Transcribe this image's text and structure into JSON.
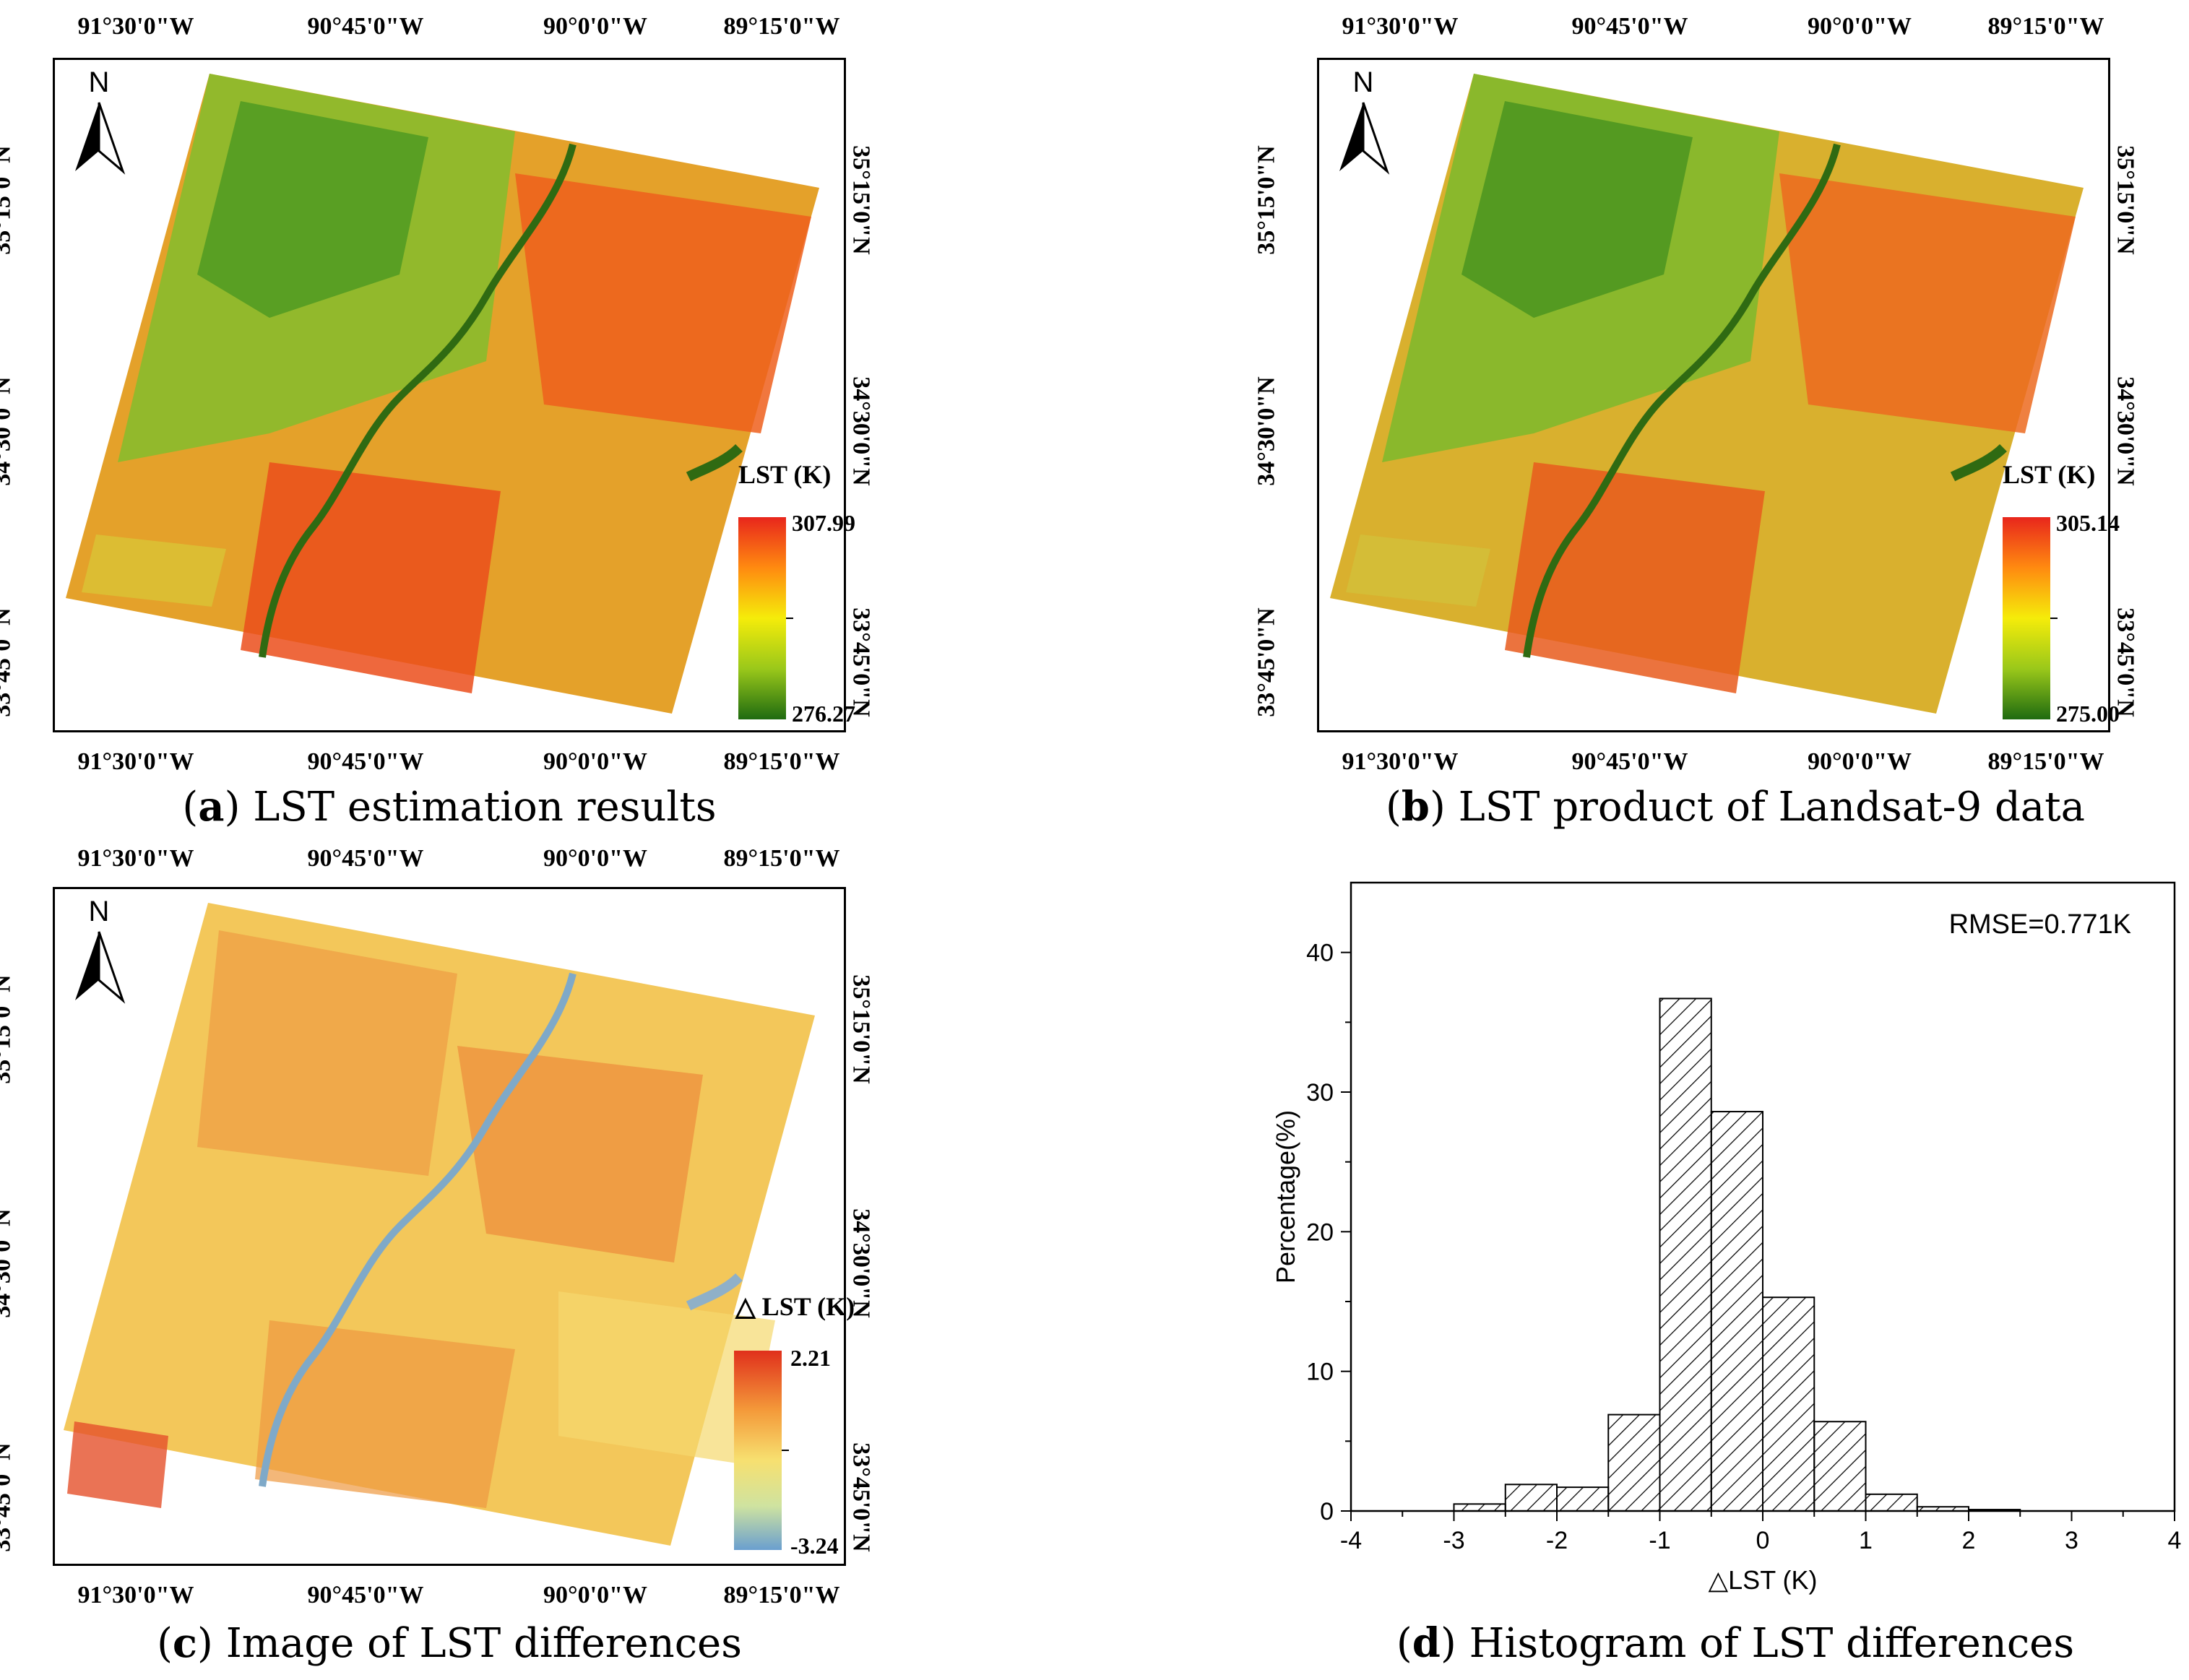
{
  "map_ticks": {
    "lon_top": [
      "91°30'0\"W",
      "90°45'0\"W",
      "90°0'0\"W",
      "89°15'0\"W"
    ],
    "lon_bottom": [
      "91°30'0\"W",
      "90°45'0\"W",
      "90°0'0\"W",
      "89°15'0\"W"
    ],
    "lat": [
      "35°15'0\"N",
      "34°30'0\"N",
      "33°45'0\"N"
    ]
  },
  "north_label": "N",
  "panels": {
    "a": {
      "caption_letter": "a",
      "caption_text": "LST estimation results",
      "legend_title": "LST (K)",
      "legend_max": "307.99",
      "legend_min": "276.27",
      "colors": [
        "#e8261c",
        "#ff8a10",
        "#f5ec0a",
        "#9ac81a",
        "#1f6b10"
      ]
    },
    "b": {
      "caption_letter": "b",
      "caption_text": "LST product of Landsat-9 data",
      "legend_title": "LST (K)",
      "legend_max": "305.14",
      "legend_min": "275.00",
      "colors": [
        "#e8261c",
        "#ff8a10",
        "#f5ec0a",
        "#9ac81a",
        "#1f6b10"
      ]
    },
    "c": {
      "caption_letter": "c",
      "caption_text": "Image of LST differences",
      "legend_title": "△ LST (K)",
      "legend_max": "2.21",
      "legend_min": "-3.24",
      "colors": [
        "#e0301c",
        "#f49a3a",
        "#f7e070",
        "#cfe3a0",
        "#6a9fcf"
      ]
    },
    "d": {
      "caption_letter": "d",
      "caption_text": "Histogram of LST differences"
    }
  },
  "chart_data": {
    "type": "bar",
    "title": "",
    "annotation": "RMSE=0.771K",
    "xlabel": "△LST (K)",
    "ylabel": "Percentage(%)",
    "xlim": [
      -4,
      4
    ],
    "ylim": [
      0,
      45
    ],
    "xticks": [
      -4,
      -3,
      -2,
      -1,
      0,
      1,
      2,
      3,
      4
    ],
    "yticks": [
      0,
      10,
      20,
      30,
      40
    ],
    "bin_width": 0.5,
    "bins": [
      {
        "x0": -3.0,
        "value": 0.5
      },
      {
        "x0": -2.5,
        "value": 1.9
      },
      {
        "x0": -2.0,
        "value": 1.7
      },
      {
        "x0": -1.5,
        "value": 6.9
      },
      {
        "x0": -1.0,
        "value": 36.7
      },
      {
        "x0": -0.5,
        "value": 28.6
      },
      {
        "x0": 0.0,
        "value": 15.3
      },
      {
        "x0": 0.5,
        "value": 6.4
      },
      {
        "x0": 1.0,
        "value": 1.2
      },
      {
        "x0": 1.5,
        "value": 0.3
      },
      {
        "x0": 2.0,
        "value": 0.1
      }
    ]
  }
}
